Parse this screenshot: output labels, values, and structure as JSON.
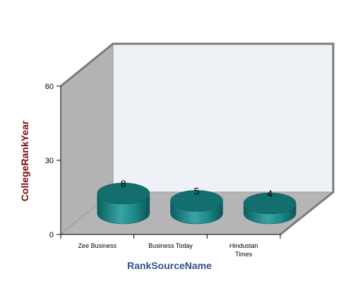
{
  "chart_data": {
    "type": "bar",
    "style": "3d-cylinder",
    "categories": [
      "Zee Business",
      "Business Today",
      "Hindustan Times"
    ],
    "values": [
      8,
      5,
      4
    ],
    "xlabel": "RankSourceName",
    "ylabel": "CollegeRankYear",
    "ylim": [
      0,
      60
    ],
    "yticks": [
      0,
      30,
      60
    ],
    "data_labels": [
      "8",
      "5",
      "4"
    ],
    "grid": false,
    "legend": "none",
    "colors": {
      "bar": "#1f8a8a",
      "bar_dark": "#0b5f5f",
      "bar_top": "#136e6e",
      "back_wall": "#eef1f6",
      "side_wall": "#b3b3b6",
      "floor": "#b5b5b8",
      "axis_title": "#34508a",
      "y_axis_title": "#7a0f0f"
    }
  }
}
